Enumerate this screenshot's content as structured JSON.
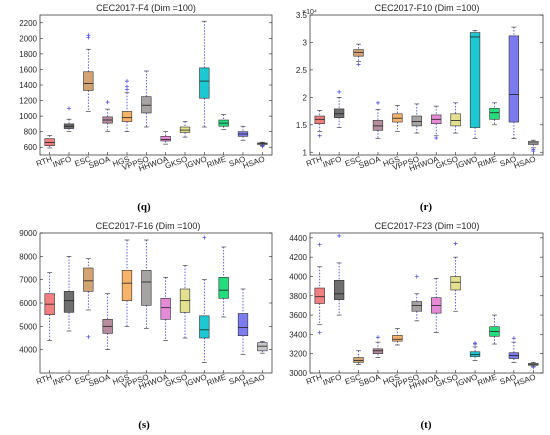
{
  "chart_data": [
    {
      "type": "box",
      "title": "CEC2017-F4 (Dim =100)",
      "caption": "(q)",
      "xlabel": "",
      "ylabel": "",
      "ylim": [
        500,
        2300
      ],
      "yticks": [
        600,
        800,
        1000,
        1200,
        1400,
        1600,
        1800,
        2000,
        2200
      ],
      "categories": [
        "RTH",
        "INFO",
        "ESC",
        "SBOA",
        "HGS",
        "VPPSO",
        "HHWOA",
        "GKSO",
        "IGWO",
        "RIME",
        "SAO",
        "HSAO"
      ],
      "colors": [
        "#f27f7f",
        "#6e6e6e",
        "#d4a373",
        "#b58d9e",
        "#f6b46a",
        "#a8a3a3",
        "#e58ad6",
        "#e4e08f",
        "#1ec8d2",
        "#23dc7c",
        "#7c7cf0",
        "#c6c6c6"
      ],
      "boxes": [
        {
          "min": 590,
          "q1": 620,
          "median": 660,
          "q3": 710,
          "max": 750,
          "outliers": []
        },
        {
          "min": 800,
          "q1": 840,
          "median": 870,
          "q3": 900,
          "max": 960,
          "outliers": [
            1100
          ]
        },
        {
          "min": 1060,
          "q1": 1330,
          "median": 1420,
          "q3": 1570,
          "max": 1860,
          "outliers": [
            2010,
            2040
          ]
        },
        {
          "min": 800,
          "q1": 910,
          "median": 950,
          "q3": 990,
          "max": 1090,
          "outliers": [
            1180
          ]
        },
        {
          "min": 800,
          "q1": 930,
          "median": 980,
          "q3": 1060,
          "max": 1300,
          "outliers": [
            1340,
            1380,
            1450
          ]
        },
        {
          "min": 860,
          "q1": 1040,
          "median": 1140,
          "q3": 1250,
          "max": 1580,
          "outliers": []
        },
        {
          "min": 640,
          "q1": 680,
          "median": 700,
          "q3": 740,
          "max": 800,
          "outliers": []
        },
        {
          "min": 730,
          "q1": 790,
          "median": 820,
          "q3": 860,
          "max": 930,
          "outliers": []
        },
        {
          "min": 860,
          "q1": 1230,
          "median": 1450,
          "q3": 1620,
          "max": 2220,
          "outliers": []
        },
        {
          "min": 830,
          "q1": 870,
          "median": 910,
          "q3": 950,
          "max": 1020,
          "outliers": []
        },
        {
          "min": 690,
          "q1": 740,
          "median": 770,
          "q3": 800,
          "max": 870,
          "outliers": []
        },
        {
          "min": 625,
          "q1": 635,
          "median": 645,
          "q3": 655,
          "max": 665,
          "outliers": [
            610,
            615
          ]
        }
      ]
    },
    {
      "type": "box",
      "title": "CEC2017-F10 (Dim =100)",
      "caption": "(r)",
      "xlabel": "",
      "ylabel": "",
      "exponent": "×10⁴",
      "ylim": [
        0.95,
        3.5
      ],
      "yticks": [
        1,
        1.5,
        2,
        2.5,
        3,
        3.5
      ],
      "categories": [
        "RTH",
        "INFO",
        "ESC",
        "SBOA",
        "HGS",
        "VPPSO",
        "HHWOA",
        "GKSO",
        "IGWO",
        "RIME",
        "SAO",
        "HSAO"
      ],
      "colors": [
        "#f27f7f",
        "#6e6e6e",
        "#d4a373",
        "#b58d9e",
        "#f6b46a",
        "#a8a3a3",
        "#e58ad6",
        "#e4e08f",
        "#1ec8d2",
        "#23dc7c",
        "#7c7cf0",
        "#c6c6c6"
      ],
      "boxes": [
        {
          "min": 1.38,
          "q1": 1.52,
          "median": 1.6,
          "q3": 1.66,
          "max": 1.76,
          "outliers": [
            1.3
          ]
        },
        {
          "min": 1.45,
          "q1": 1.63,
          "median": 1.7,
          "q3": 1.79,
          "max": 2.0,
          "outliers": [
            2.1
          ]
        },
        {
          "min": 2.65,
          "q1": 2.75,
          "median": 2.82,
          "q3": 2.87,
          "max": 2.97,
          "outliers": [
            2.6
          ]
        },
        {
          "min": 1.25,
          "q1": 1.4,
          "median": 1.48,
          "q3": 1.58,
          "max": 1.78,
          "outliers": [
            1.9
          ]
        },
        {
          "min": 1.38,
          "q1": 1.55,
          "median": 1.62,
          "q3": 1.7,
          "max": 1.85,
          "outliers": []
        },
        {
          "min": 1.35,
          "q1": 1.48,
          "median": 1.56,
          "q3": 1.66,
          "max": 1.88,
          "outliers": []
        },
        {
          "min": 1.3,
          "q1": 1.52,
          "median": 1.6,
          "q3": 1.68,
          "max": 1.84,
          "outliers": [
            1.26
          ]
        },
        {
          "min": 1.35,
          "q1": 1.48,
          "median": 1.58,
          "q3": 1.7,
          "max": 1.9,
          "outliers": []
        },
        {
          "min": 1.25,
          "q1": 1.45,
          "median": 3.1,
          "q3": 3.18,
          "max": 3.22,
          "outliers": []
        },
        {
          "min": 1.5,
          "q1": 1.6,
          "median": 1.72,
          "q3": 1.8,
          "max": 1.9,
          "outliers": []
        },
        {
          "min": 1.25,
          "q1": 1.55,
          "median": 2.05,
          "q3": 3.12,
          "max": 3.28,
          "outliers": []
        },
        {
          "min": 1.08,
          "q1": 1.14,
          "median": 1.17,
          "q3": 1.2,
          "max": 1.22,
          "outliers": [
            1.02,
            1.05
          ]
        }
      ]
    },
    {
      "type": "box",
      "title": "CEC2017-F16 (Dim =100)",
      "caption": "(s)",
      "xlabel": "",
      "ylabel": "",
      "ylim": [
        3000,
        9000
      ],
      "yticks": [
        4000,
        5000,
        6000,
        7000,
        8000,
        9000
      ],
      "categories": [
        "RTH",
        "INFO",
        "ESC",
        "SBOA",
        "HGS",
        "VPPSO",
        "HHWOA",
        "GKSO",
        "IGWO",
        "RIME",
        "SAO",
        "HSAO"
      ],
      "colors": [
        "#f27f7f",
        "#6e6e6e",
        "#d4a373",
        "#b58d9e",
        "#f6b46a",
        "#a8a3a3",
        "#e58ad6",
        "#e4e08f",
        "#1ec8d2",
        "#23dc7c",
        "#7c7cf0",
        "#c6c6c6"
      ],
      "boxes": [
        {
          "min": 4400,
          "q1": 5500,
          "median": 5950,
          "q3": 6400,
          "max": 7300,
          "outliers": []
        },
        {
          "min": 4800,
          "q1": 5600,
          "median": 6100,
          "q3": 6500,
          "max": 8000,
          "outliers": []
        },
        {
          "min": 5700,
          "q1": 6500,
          "median": 6950,
          "q3": 7500,
          "max": 7900,
          "outliers": [
            4550
          ]
        },
        {
          "min": 4000,
          "q1": 4700,
          "median": 5000,
          "q3": 5300,
          "max": 6400,
          "outliers": []
        },
        {
          "min": 5000,
          "q1": 6100,
          "median": 6850,
          "q3": 7400,
          "max": 8700,
          "outliers": []
        },
        {
          "min": 4900,
          "q1": 5900,
          "median": 6900,
          "q3": 7400,
          "max": 8700,
          "outliers": []
        },
        {
          "min": 4400,
          "q1": 5300,
          "median": 5800,
          "q3": 6200,
          "max": 7100,
          "outliers": []
        },
        {
          "min": 4500,
          "q1": 5600,
          "median": 6100,
          "q3": 6600,
          "max": 7600,
          "outliers": []
        },
        {
          "min": 3450,
          "q1": 4500,
          "median": 4850,
          "q3": 5450,
          "max": 7000,
          "outliers": [
            8800
          ]
        },
        {
          "min": 5400,
          "q1": 6200,
          "median": 6550,
          "q3": 7100,
          "max": 8400,
          "outliers": []
        },
        {
          "min": 3800,
          "q1": 4600,
          "median": 4950,
          "q3": 5550,
          "max": 6600,
          "outliers": []
        },
        {
          "min": 3850,
          "q1": 3950,
          "median": 4150,
          "q3": 4300,
          "max": 4350,
          "outliers": []
        }
      ]
    },
    {
      "type": "box",
      "title": "CEC2017-F23 (Dim =100)",
      "caption": "(t)",
      "xlabel": "",
      "ylabel": "",
      "ylim": [
        3000,
        4450
      ],
      "yticks": [
        3000,
        3200,
        3400,
        3600,
        3800,
        4000,
        4200,
        4400
      ],
      "categories": [
        "RTH",
        "INFO",
        "ESC",
        "SBOA",
        "HGS",
        "VPPSO",
        "HHWOA",
        "GKSO",
        "IGWO",
        "RIME",
        "SAO",
        "HSAO"
      ],
      "colors": [
        "#f27f7f",
        "#6e6e6e",
        "#d4a373",
        "#b58d9e",
        "#f6b46a",
        "#a8a3a3",
        "#e58ad6",
        "#e4e08f",
        "#1ec8d2",
        "#23dc7c",
        "#7c7cf0",
        "#c6c6c6"
      ],
      "boxes": [
        {
          "min": 3500,
          "q1": 3720,
          "median": 3790,
          "q3": 3880,
          "max": 4100,
          "outliers": [
            3420,
            4330
          ]
        },
        {
          "min": 3600,
          "q1": 3760,
          "median": 3820,
          "q3": 3960,
          "max": 4140,
          "outliers": [
            4420
          ]
        },
        {
          "min": 3090,
          "q1": 3110,
          "median": 3130,
          "q3": 3160,
          "max": 3230,
          "outliers": []
        },
        {
          "min": 3160,
          "q1": 3200,
          "median": 3230,
          "q3": 3250,
          "max": 3320,
          "outliers": [
            3370
          ]
        },
        {
          "min": 3290,
          "q1": 3330,
          "median": 3350,
          "q3": 3390,
          "max": 3460,
          "outliers": []
        },
        {
          "min": 3540,
          "q1": 3640,
          "median": 3700,
          "q3": 3740,
          "max": 3820,
          "outliers": [
            4000
          ]
        },
        {
          "min": 3420,
          "q1": 3620,
          "median": 3700,
          "q3": 3780,
          "max": 3980,
          "outliers": []
        },
        {
          "min": 3640,
          "q1": 3860,
          "median": 3940,
          "q3": 4000,
          "max": 4200,
          "outliers": [
            4340
          ]
        },
        {
          "min": 3130,
          "q1": 3170,
          "median": 3190,
          "q3": 3220,
          "max": 3270,
          "outliers": [
            3300,
            3310
          ]
        },
        {
          "min": 3300,
          "q1": 3380,
          "median": 3430,
          "q3": 3480,
          "max": 3600,
          "outliers": []
        },
        {
          "min": 3110,
          "q1": 3150,
          "median": 3180,
          "q3": 3210,
          "max": 3320,
          "outliers": [
            3360
          ]
        },
        {
          "min": 3070,
          "q1": 3080,
          "median": 3090,
          "q3": 3100,
          "max": 3110,
          "outliers": [
            3060
          ]
        }
      ]
    }
  ]
}
